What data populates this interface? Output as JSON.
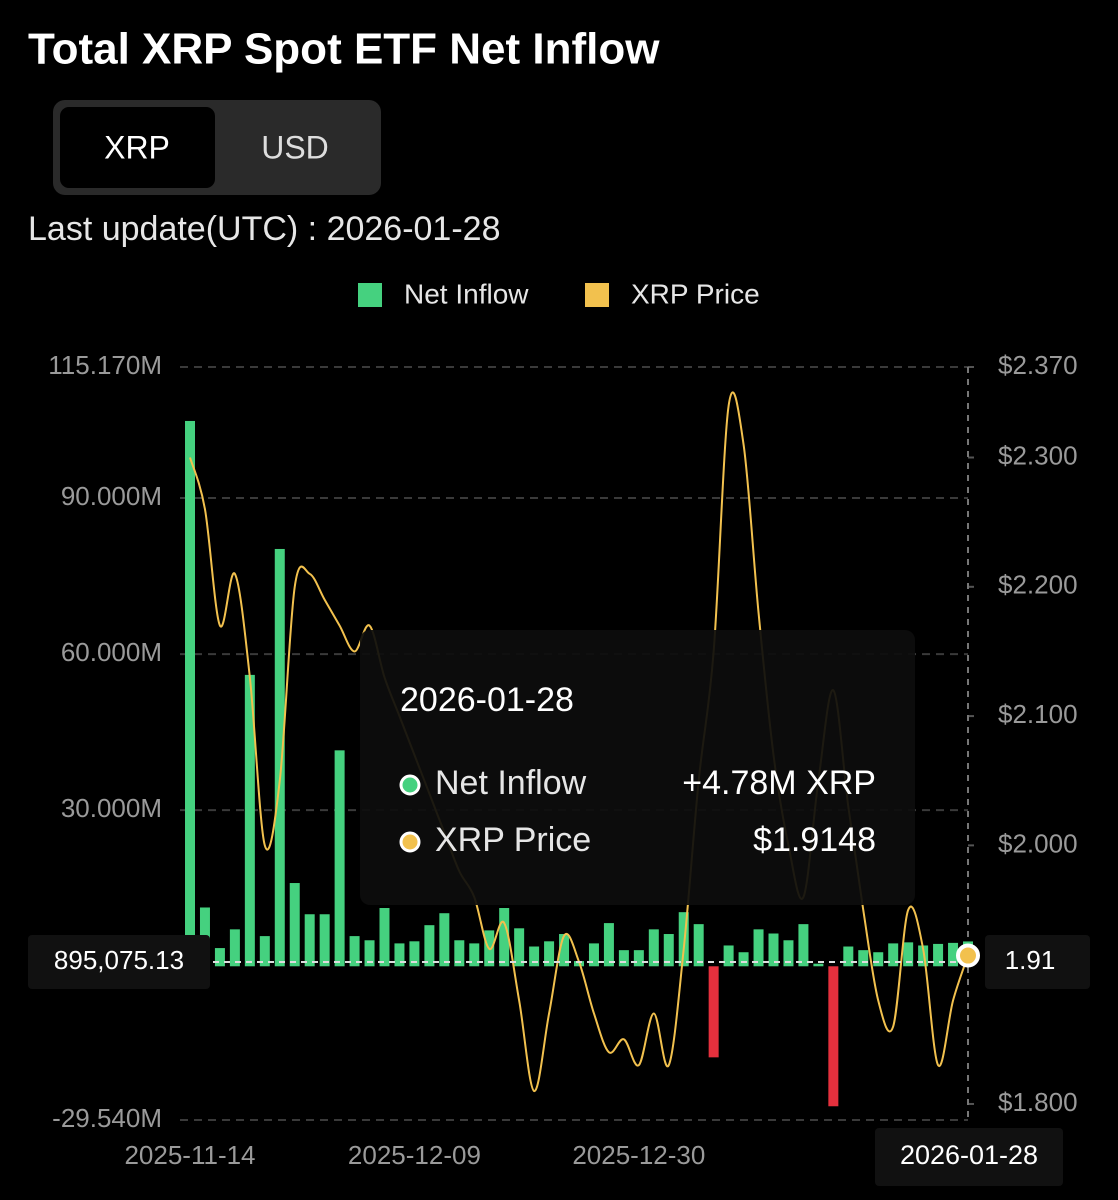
{
  "chart_data": {
    "type": "bar",
    "title": "Total XRP Spot ETF Net Inflow",
    "toggle": [
      "XRP",
      "USD"
    ],
    "subtitle": "Last update(UTC) : 2026-01-28",
    "legend": "top",
    "grid": true,
    "categories": [
      "2025-11-14",
      null,
      null,
      null,
      null,
      null,
      null,
      null,
      null,
      null,
      null,
      null,
      null,
      null,
      null,
      "2025-12-09",
      null,
      null,
      null,
      null,
      null,
      null,
      null,
      null,
      null,
      null,
      null,
      null,
      null,
      null,
      "2025-12-30",
      null,
      null,
      null,
      null,
      null,
      null,
      null,
      null,
      null,
      null,
      null,
      null,
      null,
      null,
      null,
      null,
      null,
      null,
      null,
      null,
      null,
      "2026-01-28"
    ],
    "series": [
      {
        "name": "Net Inflow",
        "type": "bar",
        "color": "#45d17f",
        "negative_color": "#e5303d",
        "values": [
          104800000,
          11300000,
          3500000,
          7100000,
          56000000,
          5800000,
          80200000,
          16000000,
          10000000,
          10000000,
          41500000,
          5800000,
          5000000,
          11200000,
          4400000,
          4800000,
          7900000,
          10200000,
          5000000,
          4400000,
          6900000,
          11200000,
          7300000,
          3800000,
          4800000,
          6200000,
          1000000,
          4400000,
          8300000,
          3100000,
          3100000,
          7100000,
          6200000,
          10400000,
          8100000,
          -17500000,
          4000000,
          2700000,
          7100000,
          6300000,
          5000000,
          8100000,
          500000,
          -26900000,
          3800000,
          3100000,
          2700000,
          4400000,
          4600000,
          4000000,
          4300000,
          4500000,
          4780000
        ]
      },
      {
        "name": "XRP Price",
        "type": "line",
        "axis": "y2",
        "color": "#f2c14e",
        "values": [
          2.3,
          2.26,
          2.17,
          2.21,
          2.13,
          2.0,
          2.05,
          2.2,
          2.21,
          2.19,
          2.17,
          2.15,
          2.17,
          2.13,
          2.1,
          2.07,
          2.04,
          2.01,
          1.98,
          1.96,
          1.92,
          1.94,
          1.88,
          1.81,
          1.87,
          1.93,
          1.91,
          1.87,
          1.84,
          1.85,
          1.83,
          1.87,
          1.83,
          1.92,
          2.05,
          2.15,
          2.34,
          2.31,
          2.18,
          2.07,
          2.0,
          1.96,
          2.05,
          2.12,
          2.03,
          1.95,
          1.88,
          1.86,
          1.95,
          1.92,
          1.83,
          1.88,
          1.9148
        ]
      }
    ],
    "ylim": [
      -29540000,
      115170000
    ],
    "yticks": [
      {
        "value": 115170000,
        "label": "115.170M"
      },
      {
        "value": 90000000,
        "label": "90.000M"
      },
      {
        "value": 60000000,
        "label": "60.000M"
      },
      {
        "value": 30000000,
        "label": "30.000M"
      },
      {
        "value": -29540000,
        "label": "-29.540M"
      }
    ],
    "y2lim": [
      1.7876,
      2.37
    ],
    "y2ticks": [
      {
        "value": 2.37,
        "label": "$2.370"
      },
      {
        "value": 2.3,
        "label": "$2.300"
      },
      {
        "value": 2.2,
        "label": "$2.200"
      },
      {
        "value": 2.1,
        "label": "$2.100"
      },
      {
        "value": 2.0,
        "label": "$2.000"
      },
      {
        "value": 1.8,
        "label": "$1.800"
      }
    ],
    "crosshair": {
      "y_label": "895,075.13",
      "y2_label": "1.91"
    },
    "tooltip": {
      "date": "2026-01-28",
      "rows": [
        {
          "name": "Net Inflow",
          "value": "+4.78M XRP"
        },
        {
          "name": "XRP Price",
          "value": "$1.9148"
        }
      ]
    }
  }
}
